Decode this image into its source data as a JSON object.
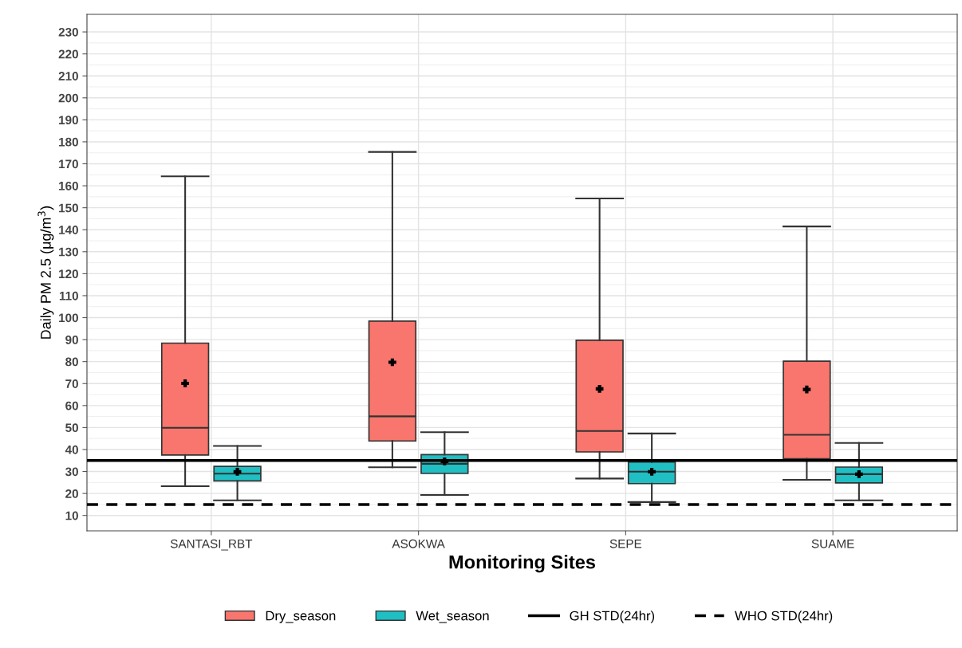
{
  "chart_data": {
    "type": "box",
    "xlabel": "Monitoring Sites",
    "ylabel": "Daily PM 2.5 (μg/m$^{3}$)",
    "categories": [
      "SANTASI_RBT",
      "ASOKWA",
      "SEPE",
      "SUAME"
    ],
    "series": [
      {
        "name": "Dry_season",
        "color": "#f8766d",
        "boxes": [
          {
            "low": 23.3,
            "q1": 37.5,
            "median": 49.9,
            "q3": 88.4,
            "high": 164.3,
            "mean": 70.1
          },
          {
            "low": 31.9,
            "q1": 43.9,
            "median": 55.1,
            "q3": 98.4,
            "high": 175.4,
            "mean": 79.7
          },
          {
            "low": 26.8,
            "q1": 38.9,
            "median": 48.4,
            "q3": 89.7,
            "high": 154.2,
            "mean": 67.6
          },
          {
            "low": 26.2,
            "q1": 35.8,
            "median": 46.7,
            "q3": 80.2,
            "high": 141.5,
            "mean": 67.3
          }
        ]
      },
      {
        "name": "Wet_season",
        "color": "#1fbfc3",
        "boxes": [
          {
            "low": 16.9,
            "q1": 25.7,
            "median": 29.0,
            "q3": 32.3,
            "high": 41.6,
            "mean": 29.9
          },
          {
            "low": 19.3,
            "q1": 29.1,
            "median": 33.5,
            "q3": 37.7,
            "high": 47.9,
            "mean": 34.6
          },
          {
            "low": 16.1,
            "q1": 24.5,
            "median": 29.9,
            "q3": 34.3,
            "high": 47.3,
            "mean": 29.9
          },
          {
            "low": 16.9,
            "q1": 24.8,
            "median": 28.8,
            "q3": 32.0,
            "high": 43.0,
            "mean": 28.8
          }
        ]
      }
    ],
    "ref_lines": [
      {
        "axis": "y",
        "value": 35,
        "label": "GH STD(24hr)",
        "color": "#000000",
        "line_style": "solid"
      },
      {
        "axis": "y",
        "value": 15,
        "label": "WHO STD(24hr)",
        "color": "#000000",
        "line_style": "dashed"
      }
    ],
    "ylim": [
      3,
      238
    ],
    "yticks": [
      10,
      20,
      30,
      40,
      50,
      60,
      70,
      80,
      90,
      100,
      110,
      120,
      130,
      140,
      150,
      160,
      170,
      180,
      190,
      200,
      210,
      220,
      230
    ],
    "grid": true,
    "legend": "bottom"
  }
}
